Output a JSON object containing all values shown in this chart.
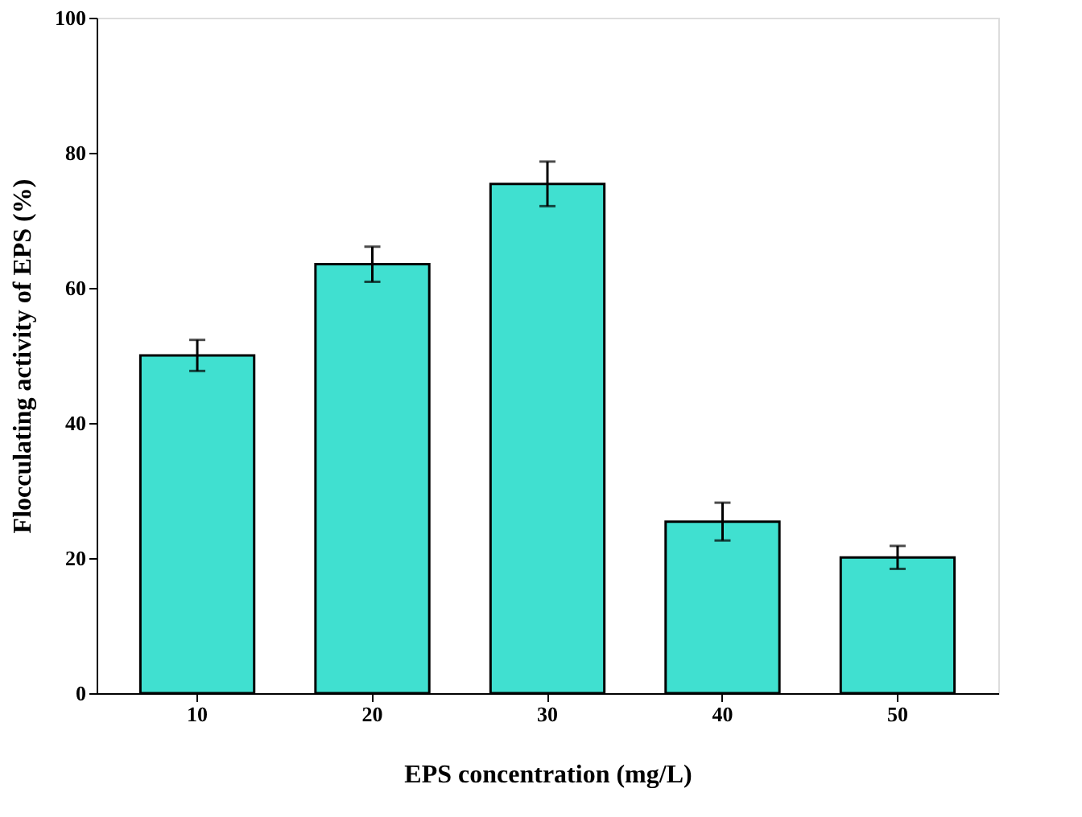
{
  "chart_data": {
    "type": "bar",
    "xlabel": "EPS concentration (mg/L)",
    "ylabel": "Flocculating activity of EPS (%)",
    "categories": [
      "10",
      "20",
      "30",
      "40",
      "50"
    ],
    "values": [
      50,
      63.5,
      75.4,
      25.4,
      20.1
    ],
    "errors": [
      2.3,
      2.6,
      3.3,
      2.8,
      1.7
    ],
    "color": "#40e0d0",
    "ylim": [
      0,
      100
    ],
    "yticks": [
      0,
      20,
      40,
      60,
      80,
      100
    ],
    "grid": false
  }
}
